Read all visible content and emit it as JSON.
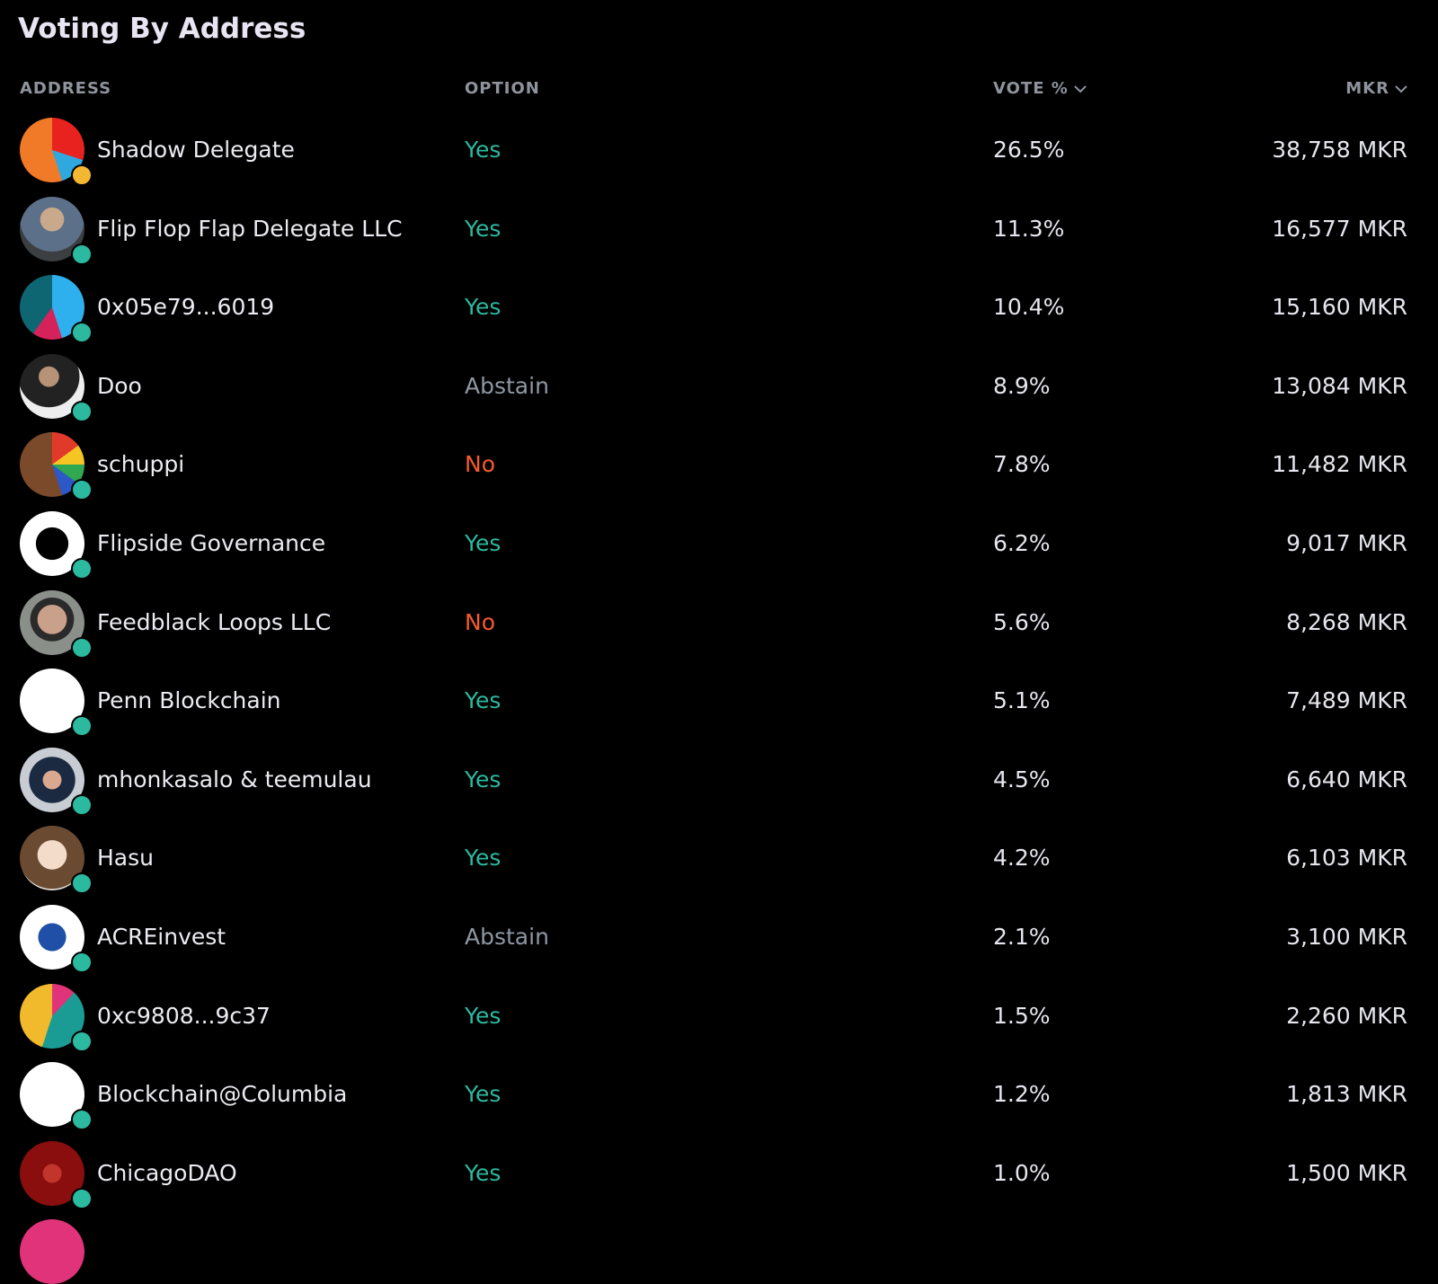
{
  "header": {
    "title": "Voting By Address"
  },
  "table": {
    "columns": [
      "ADDRESS",
      "OPTION",
      "VOTE %",
      "MKR"
    ],
    "rows": [
      [
        "Shadow Delegate",
        "Yes",
        "26.5%",
        "38,758 MKR"
      ],
      [
        "Flip Flop Flap Delegate LLC",
        "Yes",
        "11.3%",
        "16,577 MKR"
      ],
      [
        "0x05e79...6019",
        "Yes",
        "10.4%",
        "15,160 MKR"
      ],
      [
        "Doo",
        "Abstain",
        "8.9%",
        "13,084 MKR"
      ],
      [
        "schuppi",
        "No",
        "7.8%",
        "11,482 MKR"
      ],
      [
        "Flipside Governance",
        "Yes",
        "6.2%",
        "9,017 MKR"
      ],
      [
        "Feedblack Loops LLC",
        "No",
        "5.6%",
        "8,268 MKR"
      ],
      [
        "Penn Blockchain",
        "Yes",
        "5.1%",
        "7,489 MKR"
      ],
      [
        "mhonkasalo & teemulau",
        "Yes",
        "4.5%",
        "6,640 MKR"
      ],
      [
        "Hasu",
        "Yes",
        "4.2%",
        "6,103 MKR"
      ],
      [
        "ACREinvest",
        "Abstain",
        "2.1%",
        "3,100 MKR"
      ],
      [
        "0xc9808...9c37",
        "Yes",
        "1.5%",
        "2,260 MKR"
      ],
      [
        "Blockchain@Columbia",
        "Yes",
        "1.2%",
        "1,813 MKR"
      ],
      [
        "ChicagoDAO",
        "Yes",
        "1.0%",
        "1,500 MKR"
      ]
    ]
  }
}
